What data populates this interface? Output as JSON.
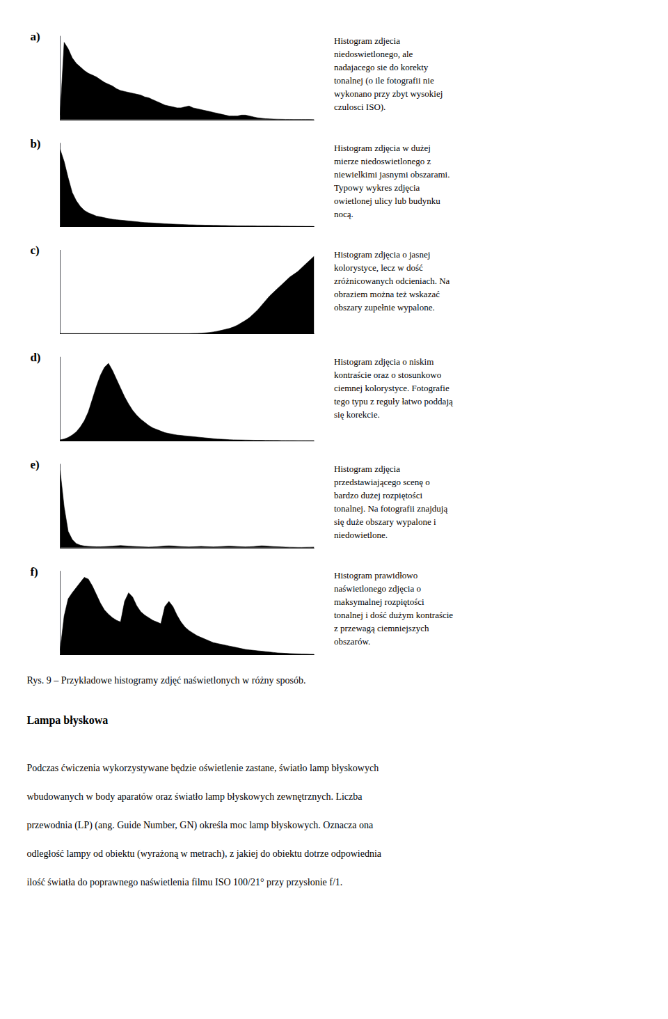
{
  "chart_data": [
    {
      "type": "area",
      "title": "a)",
      "annotations": [
        "Histogram zdjecia\nniedoswietlonego, ale\nnadajacego sie do korekty\ntonalnej (o ile fotografii nie\nwykonano przy zbyt wysokiej\nczulosci ISO)."
      ],
      "color": "#000000",
      "xlim": [
        0,
        255
      ],
      "ylim": [
        0,
        0.918
      ],
      "tick_labels": false,
      "grid": false,
      "x": [
        0,
        4.047619,
        8.095238,
        12.142857,
        16.190476,
        20.238095,
        24.285714,
        28.333333,
        32.380952,
        36.428571,
        40.47619,
        44.52381,
        48.571429,
        52.619048,
        56.666667,
        60.714286,
        64.761905,
        68.809524,
        72.857143,
        76.904762,
        80.952381,
        85,
        89.047619,
        93.095238,
        97.142857,
        101.190476,
        105.238095,
        109.285714,
        113.333333,
        117.380952,
        121.428571,
        125.47619,
        129.52381,
        133.571429,
        137.619048,
        141.666667,
        145.714286,
        149.761905,
        153.809524,
        157.857143,
        161.904762,
        165.952381,
        170,
        174.047619,
        178.095238,
        182.142857,
        186.190476,
        190.238095,
        194.285714,
        198.333333,
        202.380952,
        206.428571,
        210.47619,
        214.52381,
        218.571429,
        222.619048,
        226.666667,
        230.714286,
        234.761905,
        238.809524,
        242.857143,
        246.904762,
        250.952381,
        255
      ],
      "values": [
        0.05,
        0.85,
        0.78,
        0.68,
        0.62,
        0.58,
        0.54,
        0.51,
        0.49,
        0.47,
        0.44,
        0.41,
        0.39,
        0.37,
        0.34,
        0.32,
        0.31,
        0.3,
        0.29,
        0.28,
        0.27,
        0.25,
        0.24,
        0.22,
        0.2,
        0.18,
        0.16,
        0.15,
        0.14,
        0.13,
        0.13,
        0.14,
        0.15,
        0.13,
        0.12,
        0.11,
        0.1,
        0.09,
        0.08,
        0.07,
        0.06,
        0.05,
        0.04,
        0.04,
        0.04,
        0.05,
        0.05,
        0.04,
        0.03,
        0.02,
        0.015,
        0.01,
        0.008,
        0.006,
        0.005,
        0.004,
        0.003,
        0.003,
        0.002,
        0.002,
        0.002,
        0.002,
        0.002,
        0.001
      ]
    },
    {
      "type": "area",
      "title": "b)",
      "annotations": [
        "Histogram zdjęcia w dużej\nmierze niedoswietlonego z\nniewielkimi jasnymi obszarami.\nTypowy wykres zdjęcia\nowietlonej ulicy lub budynku\nnocą."
      ],
      "color": "#000000",
      "xlim": [
        0,
        255
      ],
      "ylim": [
        0,
        1.026
      ],
      "tick_labels": false,
      "grid": false,
      "x": [
        0,
        4.047619,
        8.095238,
        12.142857,
        16.190476,
        20.238095,
        24.285714,
        28.333333,
        32.380952,
        36.428571,
        40.47619,
        44.52381,
        48.571429,
        52.619048,
        56.666667,
        60.714286,
        64.761905,
        68.809524,
        72.857143,
        76.904762,
        80.952381,
        85,
        89.047619,
        93.095238,
        97.142857,
        101.190476,
        105.238095,
        109.285714,
        113.333333,
        117.380952,
        121.428571,
        125.47619,
        129.52381,
        133.571429,
        137.619048,
        141.666667,
        145.714286,
        149.761905,
        153.809524,
        157.857143,
        161.904762,
        165.952381,
        170,
        174.047619,
        178.095238,
        182.142857,
        186.190476,
        190.238095,
        194.285714,
        198.333333,
        202.380952,
        206.428571,
        210.47619,
        214.52381,
        218.571429,
        222.619048,
        226.666667,
        230.714286,
        234.761905,
        238.809524,
        242.857143,
        246.904762,
        250.952381,
        255
      ],
      "values": [
        0.95,
        0.8,
        0.6,
        0.42,
        0.32,
        0.25,
        0.2,
        0.17,
        0.15,
        0.13,
        0.12,
        0.11,
        0.1,
        0.09,
        0.085,
        0.08,
        0.075,
        0.07,
        0.065,
        0.06,
        0.055,
        0.05,
        0.048,
        0.045,
        0.042,
        0.039,
        0.036,
        0.033,
        0.031,
        0.029,
        0.027,
        0.025,
        0.023,
        0.022,
        0.02,
        0.019,
        0.018,
        0.017,
        0.016,
        0.015,
        0.014,
        0.013,
        0.012,
        0.011,
        0.01,
        0.01,
        0.009,
        0.009,
        0.009,
        0.008,
        0.008,
        0.008,
        0.007,
        0.007,
        0.007,
        0.006,
        0.006,
        0.005,
        0.005,
        0.004,
        0.004,
        0.003,
        0.003,
        0.002
      ]
    },
    {
      "type": "area",
      "title": "c)",
      "annotations": [
        "Histogram zdjęcia o jasnej\nkolorystyce, lecz w dość\nzróżnicowanych odcieniach. Na\nobraziem można też wskazać\nobszary zupełnie wypalone."
      ],
      "color": "#000000",
      "xlim": [
        0,
        255
      ],
      "ylim": [
        0,
        0.8856
      ],
      "tick_labels": false,
      "grid": false,
      "x": [
        0,
        4.047619,
        8.095238,
        12.142857,
        16.190476,
        20.238095,
        24.285714,
        28.333333,
        32.380952,
        36.428571,
        40.47619,
        44.52381,
        48.571429,
        52.619048,
        56.666667,
        60.714286,
        64.761905,
        68.809524,
        72.857143,
        76.904762,
        80.952381,
        85,
        89.047619,
        93.095238,
        97.142857,
        101.190476,
        105.238095,
        109.285714,
        113.333333,
        117.380952,
        121.428571,
        125.47619,
        129.52381,
        133.571429,
        137.619048,
        141.666667,
        145.714286,
        149.761905,
        153.809524,
        157.857143,
        161.904762,
        165.952381,
        170,
        174.047619,
        178.095238,
        182.142857,
        186.190476,
        190.238095,
        194.285714,
        198.333333,
        202.380952,
        206.428571,
        210.47619,
        214.52381,
        218.571429,
        222.619048,
        226.666667,
        230.714286,
        234.761905,
        238.809524,
        242.857143,
        246.904762,
        250.952381,
        255
      ],
      "values": [
        0.0,
        0.0,
        0.0,
        0.0,
        0.0,
        0.0,
        0.0,
        0.0,
        0.0,
        0.0,
        0.0,
        0.0,
        0.0,
        0.0,
        0.0,
        0.0,
        0.0,
        0.0,
        0.0,
        0.0,
        0.0,
        0.0,
        0.0,
        0.0,
        0.0,
        0.0,
        0.0,
        0.0,
        0.0,
        0.0,
        0.0,
        0.0,
        0.0,
        0.002,
        0.003,
        0.005,
        0.008,
        0.012,
        0.018,
        0.025,
        0.035,
        0.045,
        0.055,
        0.07,
        0.09,
        0.115,
        0.14,
        0.17,
        0.21,
        0.25,
        0.3,
        0.35,
        0.4,
        0.44,
        0.48,
        0.52,
        0.56,
        0.6,
        0.63,
        0.66,
        0.7,
        0.74,
        0.78,
        0.82
      ]
    },
    {
      "type": "area",
      "title": "d)",
      "annotations": [
        "Histogram zdjęcia o niskim\nkontraście oraz o stosunkowo\nciemnej kolorystyce. Fotografie\ntego typu z reguły łatwo poddają\nsię korekcie."
      ],
      "color": "#000000",
      "xlim": [
        0,
        255
      ],
      "ylim": [
        0,
        1.0476
      ],
      "tick_labels": false,
      "grid": false,
      "x": [
        0,
        4.047619,
        8.095238,
        12.142857,
        16.190476,
        20.238095,
        24.285714,
        28.333333,
        32.380952,
        36.428571,
        40.47619,
        44.52381,
        48.571429,
        52.619048,
        56.666667,
        60.714286,
        64.761905,
        68.809524,
        72.857143,
        76.904762,
        80.952381,
        85,
        89.047619,
        93.095238,
        97.142857,
        101.190476,
        105.238095,
        109.285714,
        113.333333,
        117.380952,
        121.428571,
        125.47619,
        129.52381,
        133.571429,
        137.619048,
        141.666667,
        145.714286,
        149.761905,
        153.809524,
        157.857143,
        161.904762,
        165.952381,
        170,
        174.047619,
        178.095238,
        182.142857,
        186.190476,
        190.238095,
        194.285714,
        198.333333,
        202.380952,
        206.428571,
        210.47619,
        214.52381,
        218.571429,
        222.619048,
        226.666667,
        230.714286,
        234.761905,
        238.809524,
        242.857143,
        246.904762,
        250.952381,
        255
      ],
      "values": [
        0.01,
        0.02,
        0.04,
        0.07,
        0.11,
        0.17,
        0.25,
        0.36,
        0.52,
        0.68,
        0.82,
        0.92,
        0.97,
        0.88,
        0.77,
        0.66,
        0.55,
        0.46,
        0.38,
        0.32,
        0.27,
        0.23,
        0.19,
        0.16,
        0.14,
        0.12,
        0.1,
        0.09,
        0.08,
        0.07,
        0.065,
        0.06,
        0.055,
        0.05,
        0.045,
        0.04,
        0.035,
        0.03,
        0.025,
        0.02,
        0.018,
        0.015,
        0.012,
        0.01,
        0.009,
        0.008,
        0.007,
        0.006,
        0.005,
        0.004,
        0.004,
        0.003,
        0.003,
        0.002,
        0.002,
        0.001,
        0.001,
        0.001,
        0.001,
        0.0,
        0.0,
        0.0,
        0.0,
        0.0
      ]
    },
    {
      "type": "area",
      "title": "e)",
      "annotations": [
        "Histogram zdjęcia\nprzedstawiającego scenę o\nbardzo dużej rozpiętości\ntonalnej. Na fotografii znajdują\nsię duże obszary wypalone i\nniedowietlone."
      ],
      "color": "#000000",
      "xlim": [
        0,
        255
      ],
      "ylim": [
        0,
        1.026
      ],
      "tick_labels": false,
      "grid": false,
      "x": [
        0,
        4.047619,
        8.095238,
        12.142857,
        16.190476,
        20.238095,
        24.285714,
        28.333333,
        32.380952,
        36.428571,
        40.47619,
        44.52381,
        48.571429,
        52.619048,
        56.666667,
        60.714286,
        64.761905,
        68.809524,
        72.857143,
        76.904762,
        80.952381,
        85,
        89.047619,
        93.095238,
        97.142857,
        101.190476,
        105.238095,
        109.285714,
        113.333333,
        117.380952,
        121.428571,
        125.47619,
        129.52381,
        133.571429,
        137.619048,
        141.666667,
        145.714286,
        149.761905,
        153.809524,
        157.857143,
        161.904762,
        165.952381,
        170,
        174.047619,
        178.095238,
        182.142857,
        186.190476,
        190.238095,
        194.285714,
        198.333333,
        202.380952,
        206.428571,
        210.47619,
        214.52381,
        218.571429,
        222.619048,
        226.666667,
        230.714286,
        234.761905,
        238.809524,
        242.857143,
        246.904762,
        250.952381,
        255
      ],
      "values": [
        0.95,
        0.5,
        0.2,
        0.1,
        0.05,
        0.03,
        0.02,
        0.015,
        0.012,
        0.01,
        0.01,
        0.012,
        0.015,
        0.018,
        0.022,
        0.025,
        0.022,
        0.018,
        0.015,
        0.012,
        0.01,
        0.008,
        0.007,
        0.008,
        0.01,
        0.015,
        0.02,
        0.022,
        0.02,
        0.016,
        0.012,
        0.01,
        0.009,
        0.01,
        0.012,
        0.015,
        0.012,
        0.01,
        0.009,
        0.01,
        0.013,
        0.016,
        0.018,
        0.016,
        0.013,
        0.01,
        0.009,
        0.01,
        0.013,
        0.018,
        0.022,
        0.02,
        0.016,
        0.012,
        0.01,
        0.008,
        0.006,
        0.005,
        0.004,
        0.003,
        0.003,
        0.004,
        0.005,
        0.006
      ]
    },
    {
      "type": "area",
      "title": "f)",
      "annotations": [
        "Histogram prawidłowo\nnaświetlonego zdjęcia o\nmaksymalnej rozpiętości\ntonalnej i dość dużym kontraście\nz przewagą ciemniejszych\nobszarów."
      ],
      "color": "#000000",
      "xlim": [
        0,
        255
      ],
      "ylim": [
        0,
        0.972
      ],
      "tick_labels": false,
      "grid": false,
      "x": [
        0,
        4.047619,
        8.095238,
        12.142857,
        16.190476,
        20.238095,
        24.285714,
        28.333333,
        32.380952,
        36.428571,
        40.47619,
        44.52381,
        48.571429,
        52.619048,
        56.666667,
        60.714286,
        64.761905,
        68.809524,
        72.857143,
        76.904762,
        80.952381,
        85,
        89.047619,
        93.095238,
        97.142857,
        101.190476,
        105.238095,
        109.285714,
        113.333333,
        117.380952,
        121.428571,
        125.47619,
        129.52381,
        133.571429,
        137.619048,
        141.666667,
        145.714286,
        149.761905,
        153.809524,
        157.857143,
        161.904762,
        165.952381,
        170,
        174.047619,
        178.095238,
        182.142857,
        186.190476,
        190.238095,
        194.285714,
        198.333333,
        202.380952,
        206.428571,
        210.47619,
        214.52381,
        218.571429,
        222.619048,
        226.666667,
        230.714286,
        234.761905,
        238.809524,
        242.857143,
        246.904762,
        250.952381,
        255
      ],
      "values": [
        0.05,
        0.45,
        0.65,
        0.72,
        0.78,
        0.84,
        0.9,
        0.88,
        0.8,
        0.7,
        0.6,
        0.52,
        0.47,
        0.43,
        0.4,
        0.38,
        0.62,
        0.72,
        0.67,
        0.57,
        0.5,
        0.46,
        0.43,
        0.4,
        0.38,
        0.36,
        0.56,
        0.62,
        0.56,
        0.46,
        0.38,
        0.32,
        0.28,
        0.25,
        0.22,
        0.2,
        0.18,
        0.16,
        0.14,
        0.13,
        0.12,
        0.11,
        0.1,
        0.09,
        0.08,
        0.07,
        0.06,
        0.055,
        0.05,
        0.045,
        0.04,
        0.035,
        0.03,
        0.025,
        0.02,
        0.018,
        0.015,
        0.012,
        0.01,
        0.008,
        0.006,
        0.005,
        0.004,
        0.003
      ]
    }
  ],
  "annotations": [
    "Rys. 9 – Przykładowe histogramy zdjęć naświetlonych w różny sposób.",
    "Lampa błyskowa",
    "Podczas ćwiczenia wykorzystywane będzie oświetlenie zastane, światło lamp błyskowych",
    "wbudowanych w body aparatów oraz światło lamp błyskowych zewnętrznych. Liczba",
    "przewodnia (LP) (ang. Guide Number, GN) określa moc lamp błyskowych. Oznacza ona",
    "odległość lampy od obiektu (wyrażoną w metrach), z jakiej do obiektu dotrze odpowiednia",
    "ilość światła do poprawnego naświetlenia filmu ISO 100/21° przy przysłonie f/1."
  ]
}
